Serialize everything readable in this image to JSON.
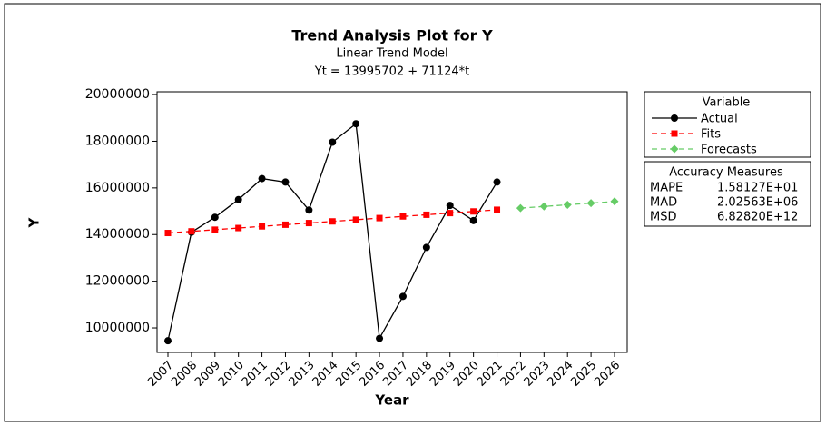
{
  "chart_data": {
    "type": "line",
    "title": "Trend Analysis Plot for Y",
    "subtitle": "Linear Trend Model",
    "equation": "Yt = 13995702 + 71124*t",
    "x_label": "Year",
    "y_label": "Y",
    "categories": [
      "2007",
      "2008",
      "2009",
      "2010",
      "2011",
      "2012",
      "2013",
      "2014",
      "2015",
      "2016",
      "2017",
      "2018",
      "2019",
      "2020",
      "2021",
      "2022",
      "2023",
      "2024",
      "2025",
      "2026"
    ],
    "ylim": [
      8950000,
      20120000
    ],
    "yticks": [
      10000000,
      12000000,
      14000000,
      16000000,
      18000000,
      20000000
    ],
    "legend_title": "Variable",
    "series": [
      {
        "name": "Actual",
        "color": "#000000",
        "marker": "circle",
        "values": [
          9450000,
          14100000,
          14740000,
          15500000,
          16400000,
          16250000,
          15050000,
          17960000,
          18750000,
          9550000,
          11350000,
          13450000,
          15250000,
          14600000,
          16250000,
          null,
          null,
          null,
          null,
          null
        ]
      },
      {
        "name": "Fits",
        "color": "#ff0000",
        "marker": "square",
        "dashed": true,
        "values": [
          14066826,
          14137950,
          14209074,
          14280198,
          14351322,
          14422446,
          14493570,
          14564694,
          14635818,
          14706942,
          14778066,
          14849190,
          14920314,
          14991438,
          15062562,
          null,
          null,
          null,
          null,
          null
        ]
      },
      {
        "name": "Forecasts",
        "color": "#66cc66",
        "marker": "diamond",
        "dashed": true,
        "values": [
          null,
          null,
          null,
          null,
          null,
          null,
          null,
          null,
          null,
          null,
          null,
          null,
          null,
          null,
          null,
          15133686,
          15204810,
          15275934,
          15347058,
          15418182
        ]
      }
    ],
    "accuracy_measures": {
      "title": "Accuracy Measures",
      "rows": [
        [
          "MAPE",
          "1.58127E+01"
        ],
        [
          "MAD",
          "2.02563E+06"
        ],
        [
          "MSD",
          "6.82820E+12"
        ]
      ]
    }
  }
}
